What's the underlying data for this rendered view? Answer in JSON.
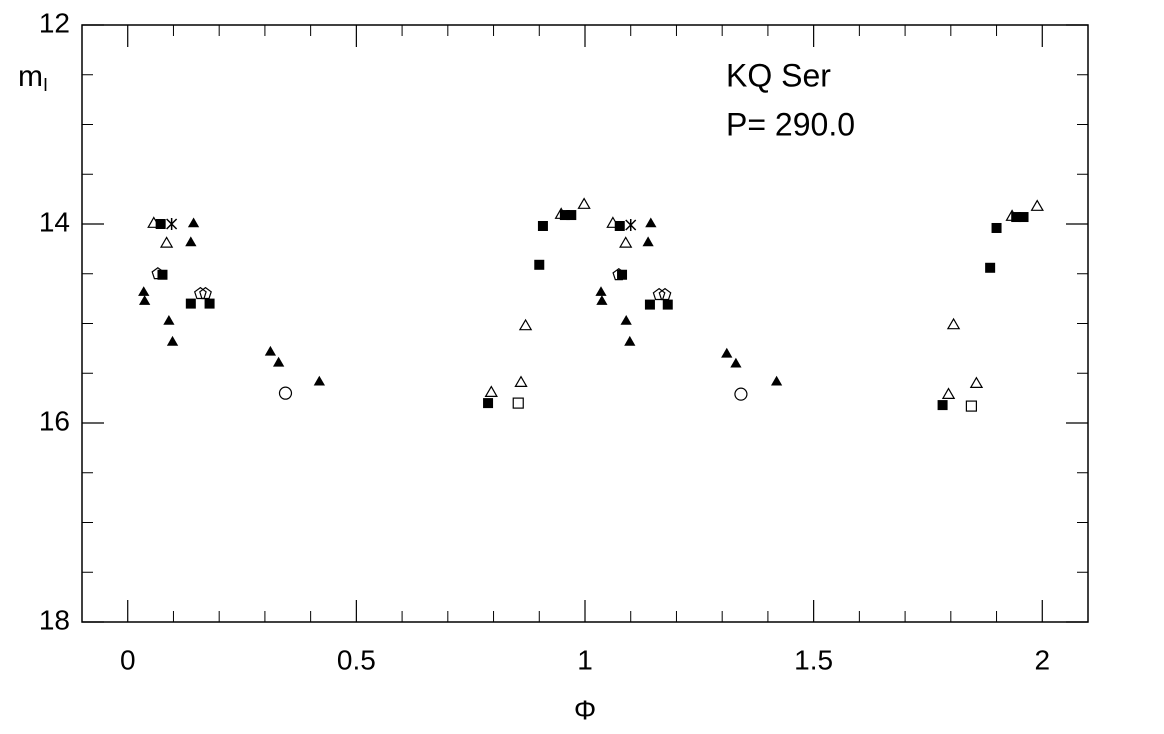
{
  "chart_data": {
    "type": "scatter",
    "annotations": [
      "KQ Ser",
      "P= 290.0"
    ],
    "x_label": "Φ",
    "y_label": {
      "main": "m",
      "sub": "I"
    },
    "xlim": [
      -0.1,
      2.1
    ],
    "ylim": [
      18,
      12
    ],
    "y_inverted": true,
    "xticks": [
      0,
      0.5,
      1,
      1.5,
      2
    ],
    "xminorticks": [
      0.1,
      0.2,
      0.3,
      0.4,
      0.6,
      0.7,
      0.8,
      0.9,
      1.1,
      1.2,
      1.3,
      1.4,
      1.6,
      1.7,
      1.8,
      1.9
    ],
    "yticks": [
      12,
      14,
      16,
      18
    ],
    "yminorticks": [
      12.5,
      13,
      13.5,
      14.5,
      15,
      15.5,
      16.5,
      17,
      17.5
    ],
    "color": "#000000",
    "series": [
      {
        "marker": "triangle-filled",
        "x": [
          0.035,
          0.037,
          0.09,
          0.098,
          0.144,
          0.138,
          0.312,
          0.33,
          0.419,
          1.035,
          1.037,
          1.09,
          1.098,
          1.144,
          1.138,
          1.31,
          1.33,
          1.419
        ],
        "values": [
          14.69,
          14.78,
          14.98,
          15.19,
          14.0,
          14.19,
          15.29,
          15.4,
          15.59,
          14.69,
          14.78,
          14.98,
          15.19,
          14.0,
          14.19,
          15.31,
          15.41,
          15.59
        ]
      },
      {
        "marker": "triangle-open",
        "x": [
          0.057,
          0.085,
          1.061,
          1.089,
          0.795,
          0.86,
          0.87,
          0.998,
          0.948,
          1.795,
          1.856,
          1.806,
          1.989,
          1.934
        ],
        "values": [
          14.0,
          14.2,
          14.0,
          14.2,
          15.7,
          15.6,
          15.03,
          13.81,
          13.91,
          15.72,
          15.61,
          15.02,
          13.83,
          13.93
        ]
      },
      {
        "marker": "square-filled",
        "x": [
          0.072,
          0.076,
          0.138,
          0.179,
          0.788,
          0.9,
          0.908,
          0.956,
          0.97,
          1.076,
          1.081,
          1.142,
          1.181,
          1.782,
          1.886,
          1.9,
          1.943,
          1.959
        ],
        "values": [
          14.0,
          14.51,
          14.8,
          14.8,
          15.8,
          14.41,
          14.02,
          13.91,
          13.91,
          14.02,
          14.51,
          14.81,
          14.81,
          15.82,
          14.44,
          14.04,
          13.93,
          13.93
        ]
      },
      {
        "marker": "square-open",
        "x": [
          0.854,
          1.845
        ],
        "values": [
          15.8,
          15.83
        ]
      },
      {
        "marker": "circle-open",
        "x": [
          0.345,
          1.341
        ],
        "values": [
          15.7,
          15.71
        ]
      },
      {
        "marker": "pentagon-open",
        "x": [
          0.066,
          0.159,
          0.17,
          1.074,
          1.162,
          1.175
        ],
        "values": [
          14.5,
          14.7,
          14.7,
          14.51,
          14.71,
          14.71
        ]
      },
      {
        "marker": "star",
        "x": [
          0.096,
          1.1
        ],
        "values": [
          14.0,
          14.01
        ]
      }
    ]
  }
}
